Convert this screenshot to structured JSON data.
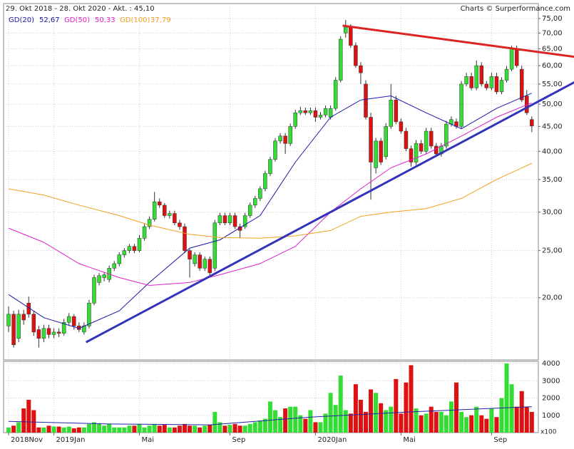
{
  "chart_data": {
    "type": "candlestick",
    "title": "29. Okt 2018 - 28. Okt 2020 - Akt. : 45,10",
    "credit": "Charts © Surperformance.com",
    "log_scale": true,
    "grid": true,
    "up_color": "#33dd33",
    "down_color": "#dd1111",
    "ylim": [
      14.9,
      80.5
    ],
    "yticks": [
      {
        "value": 20,
        "label": "20,00"
      },
      {
        "value": 25,
        "label": "25,00"
      },
      {
        "value": 30,
        "label": "30,00"
      },
      {
        "value": 35,
        "label": "35,00"
      },
      {
        "value": 40,
        "label": "40,00"
      },
      {
        "value": 45,
        "label": "45,00"
      },
      {
        "value": 50,
        "label": "50,00"
      },
      {
        "value": 55,
        "label": "55,00"
      },
      {
        "value": 60,
        "label": "60,00"
      },
      {
        "value": 65,
        "label": "65,00"
      },
      {
        "value": 70,
        "label": "70,00"
      },
      {
        "value": 75,
        "label": "75,00"
      }
    ],
    "xlim": [
      -1,
      105.3
    ],
    "xticks": [
      {
        "value": 0,
        "label": "2018Nov"
      },
      {
        "value": 9,
        "label": "2019Jan"
      },
      {
        "value": 26,
        "label": "Mai"
      },
      {
        "value": 44,
        "label": "Sep"
      },
      {
        "value": 61,
        "label": "2020Jan"
      },
      {
        "value": 78,
        "label": "Mai"
      },
      {
        "value": 96,
        "label": "Sep"
      }
    ],
    "ohlc": [
      [
        17.5,
        19.2,
        17.0,
        18.5
      ],
      [
        18.5,
        18.8,
        15.8,
        16.0
      ],
      [
        16.5,
        18.9,
        16.2,
        18.5
      ],
      [
        18.5,
        18.9,
        17.6,
        18.0
      ],
      [
        19.5,
        20.1,
        18.2,
        18.5
      ],
      [
        18.5,
        18.8,
        16.7,
        17.0
      ],
      [
        17.2,
        17.5,
        15.8,
        16.5
      ],
      [
        16.5,
        17.6,
        16.2,
        17.3
      ],
      [
        17.3,
        17.6,
        16.5,
        16.8
      ],
      [
        16.8,
        17.3,
        16.5,
        17.0
      ],
      [
        17.0,
        17.3,
        16.6,
        16.9
      ],
      [
        16.9,
        18.1,
        16.7,
        17.8
      ],
      [
        17.8,
        18.6,
        17.5,
        18.3
      ],
      [
        18.3,
        18.5,
        17.2,
        17.5
      ],
      [
        17.5,
        17.8,
        17.0,
        17.2
      ],
      [
        17.0,
        17.8,
        16.8,
        17.5
      ],
      [
        17.5,
        19.8,
        17.3,
        19.5
      ],
      [
        19.5,
        22.3,
        19.3,
        22.0
      ],
      [
        21.5,
        22.5,
        21.2,
        22.2
      ],
      [
        22.0,
        22.6,
        21.6,
        22.3
      ],
      [
        21.8,
        23.3,
        21.5,
        23.0
      ],
      [
        23.0,
        23.8,
        22.7,
        23.5
      ],
      [
        23.5,
        24.8,
        23.2,
        24.5
      ],
      [
        24.5,
        25.3,
        24.2,
        25.0
      ],
      [
        25.0,
        25.8,
        24.7,
        25.5
      ],
      [
        25.5,
        25.8,
        24.7,
        25.0
      ],
      [
        25.0,
        26.9,
        24.8,
        26.5
      ],
      [
        26.5,
        28.4,
        26.2,
        28.0
      ],
      [
        28.0,
        29.4,
        27.7,
        29.0
      ],
      [
        29.0,
        33.0,
        28.7,
        31.5
      ],
      [
        31.5,
        32.0,
        30.6,
        31.0
      ],
      [
        31.0,
        31.3,
        29.2,
        29.5
      ],
      [
        29.5,
        30.2,
        29.1,
        29.8
      ],
      [
        29.8,
        30.2,
        28.2,
        28.5
      ],
      [
        28.5,
        28.9,
        27.6,
        28.0
      ],
      [
        28.0,
        28.4,
        24.7,
        25.0
      ],
      [
        25.0,
        25.2,
        22.0,
        24.0
      ],
      [
        23.5,
        24.8,
        23.2,
        24.5
      ],
      [
        24.5,
        24.8,
        22.7,
        23.0
      ],
      [
        23.0,
        24.3,
        22.7,
        24.0
      ],
      [
        24.0,
        24.3,
        22.2,
        22.5
      ],
      [
        23.0,
        28.9,
        22.7,
        28.5
      ],
      [
        28.5,
        29.9,
        28.2,
        29.5
      ],
      [
        29.5,
        29.9,
        28.2,
        28.5
      ],
      [
        28.5,
        29.9,
        28.2,
        29.5
      ],
      [
        29.5,
        29.9,
        27.7,
        28.0
      ],
      [
        28.0,
        28.4,
        26.5,
        27.5
      ],
      [
        28.0,
        29.9,
        27.7,
        29.5
      ],
      [
        29.5,
        31.4,
        29.2,
        31.0
      ],
      [
        31.0,
        32.4,
        30.6,
        32.0
      ],
      [
        32.0,
        33.9,
        31.6,
        33.5
      ],
      [
        33.5,
        36.5,
        33.1,
        36.0
      ],
      [
        36.0,
        39.0,
        35.6,
        38.5
      ],
      [
        38.5,
        42.6,
        38.1,
        42.0
      ],
      [
        42.0,
        43.6,
        41.5,
        43.0
      ],
      [
        43.0,
        43.6,
        39.5,
        41.5
      ],
      [
        41.5,
        45.6,
        41.0,
        45.0
      ],
      [
        45.0,
        48.7,
        44.5,
        48.0
      ],
      [
        48.0,
        49.4,
        47.5,
        48.5
      ],
      [
        48.5,
        49.2,
        47.5,
        48.0
      ],
      [
        48.0,
        49.2,
        47.5,
        48.5
      ],
      [
        48.5,
        49.2,
        46.0,
        47.0
      ],
      [
        47.0,
        48.2,
        46.5,
        47.5
      ],
      [
        47.5,
        49.7,
        47.0,
        49.0
      ],
      [
        47.0,
        49.7,
        46.5,
        49.0
      ],
      [
        49.0,
        56.8,
        48.5,
        56.0
      ],
      [
        56.0,
        69.0,
        55.4,
        68.0
      ],
      [
        70.0,
        74.5,
        68.5,
        72.0
      ],
      [
        72.0,
        73.0,
        65.3,
        66.0
      ],
      [
        66.0,
        67.0,
        59.4,
        60.0
      ],
      [
        60.0,
        61.0,
        55.0,
        58.0
      ],
      [
        55.0,
        56.0,
        46.5,
        47.0
      ],
      [
        47.0,
        48.0,
        31.8,
        38.0
      ],
      [
        37.0,
        42.6,
        36.0,
        42.0
      ],
      [
        42.0,
        42.6,
        37.5,
        38.0
      ],
      [
        39.0,
        45.7,
        38.5,
        45.0
      ],
      [
        45.0,
        55.0,
        44.5,
        51.0
      ],
      [
        51.0,
        52.0,
        45.5,
        46.0
      ],
      [
        46.0,
        46.7,
        43.5,
        44.0
      ],
      [
        44.0,
        44.7,
        40.0,
        40.5
      ],
      [
        40.5,
        41.1,
        37.2,
        38.0
      ],
      [
        38.0,
        42.2,
        37.5,
        41.5
      ],
      [
        41.5,
        42.2,
        39.5,
        40.0
      ],
      [
        40.0,
        44.7,
        39.5,
        44.0
      ],
      [
        44.0,
        44.7,
        40.5,
        41.0
      ],
      [
        41.0,
        41.6,
        39.0,
        39.5
      ],
      [
        39.5,
        41.6,
        39.0,
        41.0
      ],
      [
        41.0,
        46.2,
        40.5,
        45.5
      ],
      [
        45.5,
        47.2,
        45.0,
        46.5
      ],
      [
        46.0,
        46.7,
        44.5,
        45.0
      ],
      [
        45.0,
        55.8,
        44.5,
        55.0
      ],
      [
        55.0,
        58.0,
        54.4,
        57.0
      ],
      [
        57.0,
        58.0,
        53.4,
        54.0
      ],
      [
        54.0,
        61.5,
        53.4,
        60.0
      ],
      [
        60.0,
        61.0,
        54.4,
        55.0
      ],
      [
        55.0,
        55.8,
        53.4,
        54.0
      ],
      [
        54.0,
        58.0,
        53.4,
        57.0
      ],
      [
        57.0,
        58.0,
        52.4,
        53.0
      ],
      [
        53.0,
        56.8,
        52.4,
        56.0
      ],
      [
        56.0,
        59.9,
        55.4,
        59.0
      ],
      [
        59.0,
        66.0,
        58.4,
        65.0
      ],
      [
        65.0,
        66.0,
        59.4,
        60.0
      ],
      [
        59.0,
        60.0,
        50.5,
        51.0
      ],
      [
        52.0,
        53.5,
        47.5,
        48.0
      ],
      [
        46.5,
        47.2,
        43.8,
        45.1
      ]
    ],
    "ma": {
      "x": [
        0,
        7,
        14,
        22,
        28,
        36,
        42,
        50,
        57,
        64,
        70,
        76,
        83,
        90,
        97,
        104
      ],
      "series": [
        {
          "name": "GD(20)",
          "latest": "52,67",
          "color": "#1a1aa8",
          "values": [
            20.3,
            18.2,
            17.3,
            18.8,
            21.5,
            25.3,
            26.3,
            29.5,
            38,
            47,
            51,
            52,
            48,
            44.5,
            49,
            52.67
          ]
        },
        {
          "name": "GD(50)",
          "latest": "50,33",
          "color": "#dd22cc",
          "values": [
            27.8,
            26,
            23.5,
            22,
            21.2,
            21.5,
            22.3,
            23.5,
            25.5,
            30,
            33.5,
            37,
            39.5,
            43,
            47,
            50.33
          ]
        },
        {
          "name": "GD(100)",
          "latest": "37,79",
          "color": "#f0a020",
          "values": [
            33.5,
            32.5,
            31,
            29.5,
            28.2,
            27,
            26.6,
            26.5,
            26.8,
            27.5,
            29.4,
            30,
            30.5,
            32,
            35,
            37.79
          ]
        }
      ]
    },
    "trendlines": [
      {
        "color": "#dd2222",
        "x": [
          66.4,
          112.8
        ],
        "y": [
          72.5,
          62.5
        ]
      },
      {
        "color": "#3333bb",
        "x": [
          15.4,
          112.8
        ],
        "y": [
          16.2,
          55.7
        ]
      }
    ],
    "volume": {
      "unit_label": "x100",
      "ylim": [
        0,
        4125
      ],
      "yticks": [
        1000,
        2000,
        3000,
        4000
      ],
      "avg_color": "#2222aa",
      "values": [
        300,
        400,
        600,
        1400,
        1900,
        1300,
        300,
        300,
        400,
        350,
        350,
        300,
        350,
        250,
        300,
        300,
        500,
        600,
        500,
        400,
        500,
        300,
        300,
        300,
        400,
        400,
        500,
        300,
        400,
        500,
        400,
        450,
        300,
        300,
        400,
        500,
        400,
        400,
        300,
        400,
        450,
        1200,
        600,
        400,
        450,
        500,
        400,
        400,
        500,
        600,
        700,
        800,
        1800,
        1300,
        900,
        1400,
        1500,
        1500,
        1000,
        800,
        1300,
        600,
        600,
        1100,
        2300,
        1600,
        3300,
        1300,
        1100,
        2800,
        1900,
        1200,
        2500,
        2300,
        1700,
        1300,
        1500,
        3100,
        1100,
        2900,
        3900,
        1400,
        1000,
        1100,
        1500,
        1200,
        1200,
        1000,
        1800,
        2900,
        1200,
        900,
        1000,
        1500,
        1000,
        800,
        1400,
        900,
        2000,
        4000,
        2800,
        1500,
        2400,
        1500,
        1200
      ],
      "avg_x": [
        0,
        20,
        40,
        60,
        80,
        104
      ],
      "avg": [
        650,
        500,
        450,
        900,
        1200,
        1500
      ]
    }
  }
}
